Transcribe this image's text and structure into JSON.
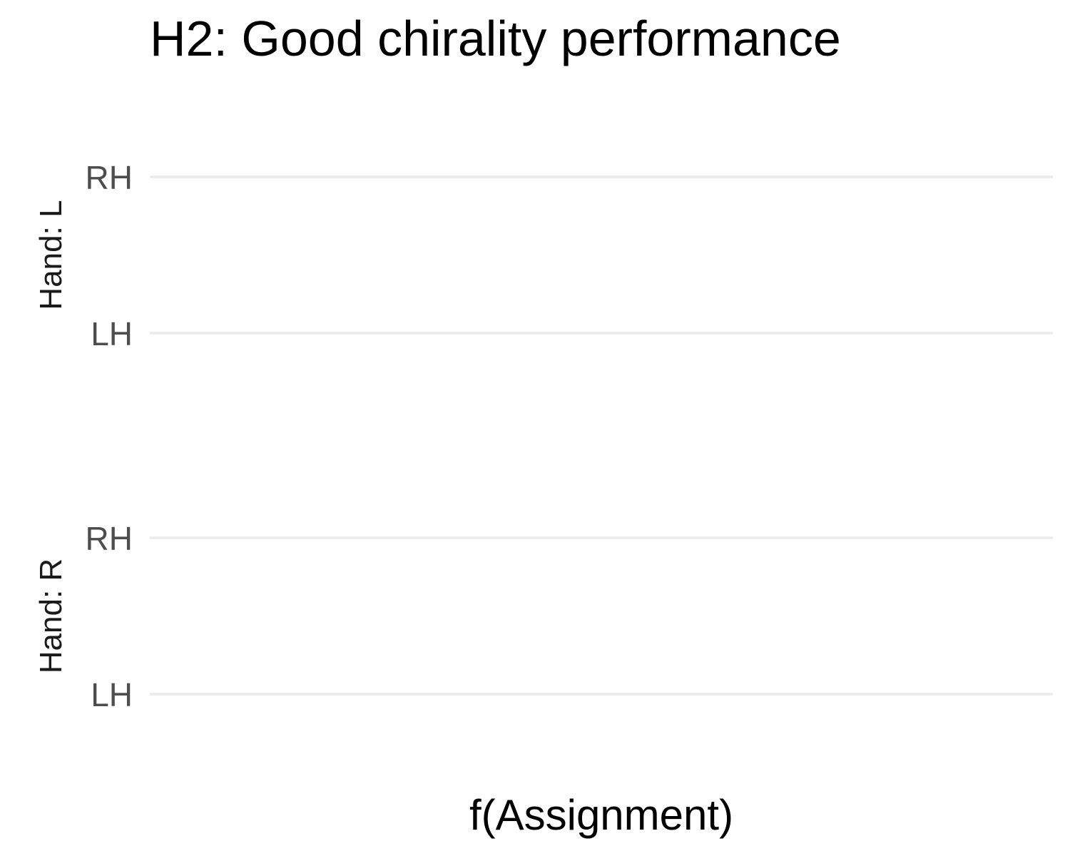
{
  "chart_data": {
    "type": "scatter",
    "title": "H2: Good chirality performance",
    "xlabel": "f(Assignment)",
    "ylabel": "",
    "grid": true,
    "legend": "none",
    "facets": [
      {
        "label": "Hand: L",
        "y_categories": [
          "LH",
          "RH"
        ],
        "points": []
      },
      {
        "label": "Hand: R",
        "y_categories": [
          "LH",
          "RH"
        ],
        "points": []
      }
    ],
    "colors": {
      "grid": "#ebebeb",
      "tick_label": "#4d4d4d",
      "facet_label": "#1a1a1a",
      "text": "#000000"
    }
  }
}
